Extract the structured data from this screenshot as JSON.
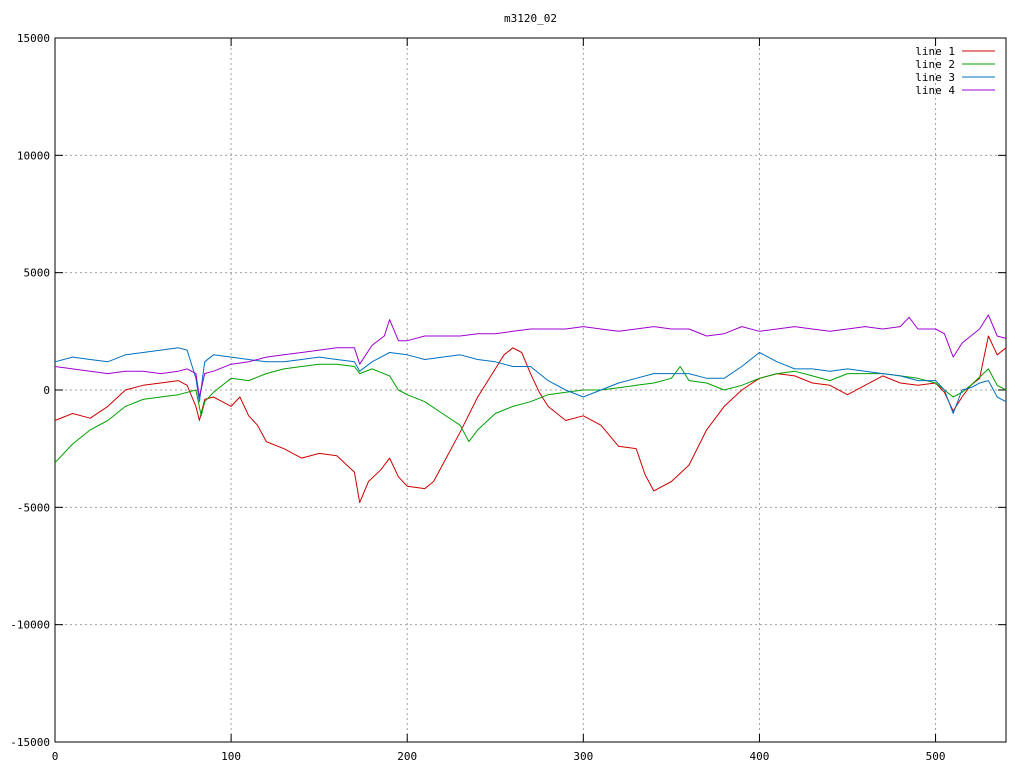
{
  "chart_data": {
    "type": "line",
    "title": "m3120_02",
    "xlabel": "",
    "ylabel": "",
    "xlim": [
      0,
      540
    ],
    "ylim": [
      -15000,
      15000
    ],
    "x_ticks": [
      0,
      100,
      200,
      300,
      400,
      500
    ],
    "y_ticks": [
      -15000,
      -10000,
      -5000,
      0,
      5000,
      10000,
      15000
    ],
    "grid": true,
    "legend_position": "top-right",
    "series": [
      {
        "name": "line 1",
        "color": "#d00000",
        "points": [
          [
            0,
            -1300
          ],
          [
            10,
            -1000
          ],
          [
            20,
            -1200
          ],
          [
            30,
            -700
          ],
          [
            40,
            0
          ],
          [
            50,
            200
          ],
          [
            60,
            300
          ],
          [
            70,
            400
          ],
          [
            75,
            200
          ],
          [
            80,
            -700
          ],
          [
            82,
            -1300
          ],
          [
            85,
            -400
          ],
          [
            90,
            -300
          ],
          [
            95,
            -500
          ],
          [
            100,
            -700
          ],
          [
            105,
            -300
          ],
          [
            110,
            -1100
          ],
          [
            115,
            -1500
          ],
          [
            120,
            -2200
          ],
          [
            130,
            -2500
          ],
          [
            140,
            -2900
          ],
          [
            150,
            -2700
          ],
          [
            160,
            -2800
          ],
          [
            170,
            -3500
          ],
          [
            173,
            -4800
          ],
          [
            178,
            -3900
          ],
          [
            185,
            -3400
          ],
          [
            190,
            -2900
          ],
          [
            195,
            -3700
          ],
          [
            200,
            -4100
          ],
          [
            210,
            -4200
          ],
          [
            215,
            -3900
          ],
          [
            220,
            -3200
          ],
          [
            230,
            -1800
          ],
          [
            240,
            -300
          ],
          [
            250,
            900
          ],
          [
            255,
            1500
          ],
          [
            260,
            1800
          ],
          [
            265,
            1600
          ],
          [
            270,
            700
          ],
          [
            275,
            -100
          ],
          [
            280,
            -700
          ],
          [
            290,
            -1300
          ],
          [
            300,
            -1100
          ],
          [
            310,
            -1500
          ],
          [
            320,
            -2400
          ],
          [
            330,
            -2500
          ],
          [
            335,
            -3600
          ],
          [
            340,
            -4300
          ],
          [
            350,
            -3900
          ],
          [
            360,
            -3200
          ],
          [
            370,
            -1700
          ],
          [
            380,
            -700
          ],
          [
            390,
            0
          ],
          [
            400,
            500
          ],
          [
            410,
            700
          ],
          [
            420,
            600
          ],
          [
            430,
            300
          ],
          [
            440,
            200
          ],
          [
            450,
            -200
          ],
          [
            460,
            200
          ],
          [
            470,
            600
          ],
          [
            480,
            300
          ],
          [
            490,
            200
          ],
          [
            500,
            300
          ],
          [
            505,
            -100
          ],
          [
            510,
            -900
          ],
          [
            515,
            -300
          ],
          [
            520,
            200
          ],
          [
            525,
            500
          ],
          [
            530,
            2300
          ],
          [
            535,
            1500
          ],
          [
            540,
            1800
          ]
        ]
      },
      {
        "name": "line 2",
        "color": "#00a000",
        "points": [
          [
            0,
            -3100
          ],
          [
            10,
            -2300
          ],
          [
            20,
            -1700
          ],
          [
            30,
            -1300
          ],
          [
            40,
            -700
          ],
          [
            50,
            -400
          ],
          [
            60,
            -300
          ],
          [
            70,
            -200
          ],
          [
            80,
            0
          ],
          [
            83,
            -1100
          ],
          [
            85,
            -500
          ],
          [
            90,
            -100
          ],
          [
            100,
            500
          ],
          [
            110,
            400
          ],
          [
            120,
            700
          ],
          [
            130,
            900
          ],
          [
            140,
            1000
          ],
          [
            150,
            1100
          ],
          [
            160,
            1100
          ],
          [
            170,
            1000
          ],
          [
            173,
            700
          ],
          [
            180,
            900
          ],
          [
            190,
            600
          ],
          [
            195,
            0
          ],
          [
            200,
            -200
          ],
          [
            210,
            -500
          ],
          [
            220,
            -1000
          ],
          [
            230,
            -1500
          ],
          [
            235,
            -2200
          ],
          [
            240,
            -1700
          ],
          [
            250,
            -1000
          ],
          [
            260,
            -700
          ],
          [
            270,
            -500
          ],
          [
            280,
            -200
          ],
          [
            290,
            -100
          ],
          [
            300,
            0
          ],
          [
            310,
            0
          ],
          [
            320,
            100
          ],
          [
            330,
            200
          ],
          [
            340,
            300
          ],
          [
            350,
            500
          ],
          [
            355,
            1000
          ],
          [
            360,
            400
          ],
          [
            370,
            300
          ],
          [
            380,
            0
          ],
          [
            390,
            200
          ],
          [
            400,
            500
          ],
          [
            410,
            700
          ],
          [
            420,
            800
          ],
          [
            430,
            600
          ],
          [
            440,
            400
          ],
          [
            450,
            700
          ],
          [
            460,
            700
          ],
          [
            470,
            700
          ],
          [
            480,
            600
          ],
          [
            490,
            500
          ],
          [
            500,
            300
          ],
          [
            505,
            0
          ],
          [
            510,
            -300
          ],
          [
            515,
            -100
          ],
          [
            520,
            200
          ],
          [
            530,
            900
          ],
          [
            535,
            200
          ],
          [
            540,
            0
          ]
        ]
      },
      {
        "name": "line 3",
        "color": "#0070c0",
        "points": [
          [
            0,
            1200
          ],
          [
            10,
            1400
          ],
          [
            20,
            1300
          ],
          [
            30,
            1200
          ],
          [
            40,
            1500
          ],
          [
            50,
            1600
          ],
          [
            60,
            1700
          ],
          [
            70,
            1800
          ],
          [
            75,
            1700
          ],
          [
            80,
            500
          ],
          [
            82,
            -500
          ],
          [
            85,
            1200
          ],
          [
            90,
            1500
          ],
          [
            100,
            1400
          ],
          [
            110,
            1300
          ],
          [
            120,
            1200
          ],
          [
            130,
            1200
          ],
          [
            140,
            1300
          ],
          [
            150,
            1400
          ],
          [
            160,
            1300
          ],
          [
            170,
            1200
          ],
          [
            173,
            800
          ],
          [
            180,
            1200
          ],
          [
            190,
            1600
          ],
          [
            200,
            1500
          ],
          [
            210,
            1300
          ],
          [
            220,
            1400
          ],
          [
            230,
            1500
          ],
          [
            240,
            1300
          ],
          [
            250,
            1200
          ],
          [
            260,
            1000
          ],
          [
            270,
            1000
          ],
          [
            280,
            400
          ],
          [
            290,
            0
          ],
          [
            300,
            -300
          ],
          [
            310,
            0
          ],
          [
            320,
            300
          ],
          [
            330,
            500
          ],
          [
            340,
            700
          ],
          [
            350,
            700
          ],
          [
            360,
            700
          ],
          [
            370,
            500
          ],
          [
            380,
            500
          ],
          [
            390,
            1000
          ],
          [
            400,
            1600
          ],
          [
            410,
            1200
          ],
          [
            420,
            900
          ],
          [
            430,
            900
          ],
          [
            440,
            800
          ],
          [
            450,
            900
          ],
          [
            460,
            800
          ],
          [
            470,
            700
          ],
          [
            480,
            600
          ],
          [
            490,
            400
          ],
          [
            500,
            400
          ],
          [
            505,
            0
          ],
          [
            510,
            -1000
          ],
          [
            515,
            0
          ],
          [
            520,
            100
          ],
          [
            525,
            300
          ],
          [
            530,
            400
          ],
          [
            535,
            -300
          ],
          [
            540,
            -500
          ]
        ]
      },
      {
        "name": "line 4",
        "color": "#a000d0",
        "points": [
          [
            0,
            1000
          ],
          [
            10,
            900
          ],
          [
            20,
            800
          ],
          [
            30,
            700
          ],
          [
            40,
            800
          ],
          [
            50,
            800
          ],
          [
            60,
            700
          ],
          [
            70,
            800
          ],
          [
            75,
            900
          ],
          [
            80,
            700
          ],
          [
            82,
            -300
          ],
          [
            85,
            700
          ],
          [
            90,
            800
          ],
          [
            100,
            1100
          ],
          [
            110,
            1200
          ],
          [
            120,
            1400
          ],
          [
            130,
            1500
          ],
          [
            140,
            1600
          ],
          [
            150,
            1700
          ],
          [
            160,
            1800
          ],
          [
            170,
            1800
          ],
          [
            173,
            1100
          ],
          [
            180,
            1900
          ],
          [
            187,
            2300
          ],
          [
            190,
            3000
          ],
          [
            195,
            2100
          ],
          [
            200,
            2100
          ],
          [
            210,
            2300
          ],
          [
            220,
            2300
          ],
          [
            230,
            2300
          ],
          [
            240,
            2400
          ],
          [
            250,
            2400
          ],
          [
            260,
            2500
          ],
          [
            270,
            2600
          ],
          [
            280,
            2600
          ],
          [
            290,
            2600
          ],
          [
            300,
            2700
          ],
          [
            310,
            2600
          ],
          [
            320,
            2500
          ],
          [
            330,
            2600
          ],
          [
            340,
            2700
          ],
          [
            350,
            2600
          ],
          [
            360,
            2600
          ],
          [
            370,
            2300
          ],
          [
            380,
            2400
          ],
          [
            390,
            2700
          ],
          [
            400,
            2500
          ],
          [
            410,
            2600
          ],
          [
            420,
            2700
          ],
          [
            430,
            2600
          ],
          [
            440,
            2500
          ],
          [
            450,
            2600
          ],
          [
            460,
            2700
          ],
          [
            470,
            2600
          ],
          [
            480,
            2700
          ],
          [
            485,
            3100
          ],
          [
            490,
            2600
          ],
          [
            500,
            2600
          ],
          [
            505,
            2400
          ],
          [
            510,
            1400
          ],
          [
            515,
            2000
          ],
          [
            520,
            2300
          ],
          [
            525,
            2600
          ],
          [
            530,
            3200
          ],
          [
            535,
            2300
          ],
          [
            540,
            2200
          ]
        ]
      }
    ]
  }
}
